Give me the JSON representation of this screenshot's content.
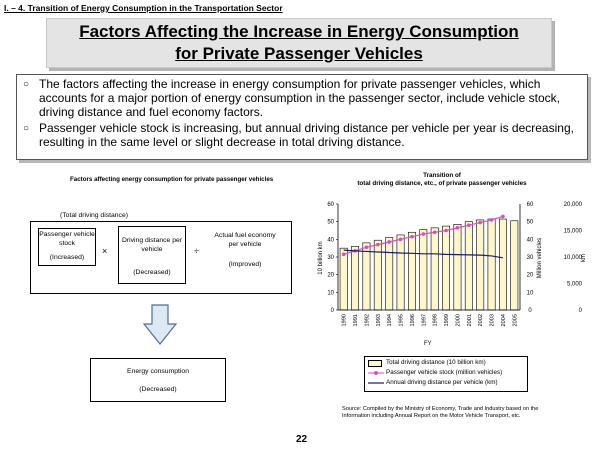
{
  "section_label": "I. – 4. Transition of Energy Consumption in the Transportation Sector",
  "title": {
    "line1": "Factors Affecting the Increase in Energy Consumption",
    "line2": "for Private Passenger Vehicles"
  },
  "bullets": [
    {
      "mark": "○",
      "text": "The factors affecting the increase in energy consumption for private passenger vehicles, which accounts for a major portion of energy consumption in the passenger sector, include vehicle stock, driving distance and fuel economy factors."
    },
    {
      "mark": "○",
      "text": "Passenger vehicle stock is increasing, but annual driving distance per vehicle per year is decreasing, resulting in the same level or slight decrease in total driving distance."
    }
  ],
  "diagram": {
    "title": "Factors affecting energy consumption for private passenger vehicles",
    "total_label": "(Total driving distance)",
    "stock": {
      "label": "Passenger vehicle stock",
      "status": "(Increased)"
    },
    "times": "×",
    "distance": {
      "label": "Driving distance per vehicle",
      "status": "(Decreased)"
    },
    "divide": "÷",
    "fuel": {
      "label": "Actual fuel economy per vehicle",
      "status": "(Improved)"
    },
    "result": {
      "label": "Energy consumption",
      "status": "(Decreased)"
    }
  },
  "chart_data": {
    "type": "bar",
    "title": "Transition of total driving distance, etc., of private passenger vehicles",
    "categories": [
      "1990",
      "1991",
      "1992",
      "1993",
      "1994",
      "1995",
      "1996",
      "1997",
      "1998",
      "1999",
      "2000",
      "2001",
      "2002",
      "2003",
      "2004",
      "2005"
    ],
    "xlabel": "FY",
    "ylabel_left": "10 billion km",
    "ylabel_mid": "Million vehicles",
    "ylabel_right": "km",
    "ylim": [
      0,
      60
    ],
    "ylim_right": [
      0,
      20000
    ],
    "left_ticks": [
      "0",
      "10",
      "20",
      "30",
      "40",
      "50",
      "60"
    ],
    "mid_ticks": [
      "0",
      "10",
      "20",
      "30",
      "40",
      "50",
      "60"
    ],
    "right_ticks": [
      "0",
      "5,000",
      "10,000",
      "15,000",
      "20,000"
    ],
    "series": [
      {
        "name": "Total driving distance (10 billion km)",
        "kind": "bar",
        "values": [
          35,
          36,
          38,
          39.5,
          41,
          42.5,
          44,
          45.5,
          46.5,
          47.5,
          48.5,
          50,
          51,
          51.5,
          51.5,
          50.5
        ]
      },
      {
        "name": "Passenger vehicle stock (million vehicles)",
        "kind": "line",
        "color": "#d44fc7",
        "values": [
          31.5,
          33.5,
          35.5,
          37,
          38.5,
          40,
          41.5,
          43,
          44,
          45,
          46.5,
          48,
          49.5,
          51,
          53,
          null
        ]
      },
      {
        "name": "Annual driving distance per vehicle (km)",
        "kind": "line",
        "color": "#1a1a6e",
        "axis": "right",
        "values": [
          11300,
          11150,
          11050,
          10950,
          10850,
          10750,
          10700,
          10600,
          10600,
          10500,
          10450,
          10400,
          10350,
          10200,
          9850,
          null
        ]
      }
    ]
  },
  "legend": {
    "items": [
      "Total driving distance (10 billion km)",
      "Passenger vehicle stock (million vehicles)",
      "Annual driving distance per vehicle (km)"
    ]
  },
  "source": "Source: Compiled by the Ministry of Economy, Trade and Industry based on the Information including Annual Report on the Motor Vehicle Transport, etc.",
  "page_number": "22",
  "colors": {
    "bar_fill": "#fff7cc",
    "stock_line": "#d44fc7",
    "distance_line": "#1a1a6e"
  }
}
